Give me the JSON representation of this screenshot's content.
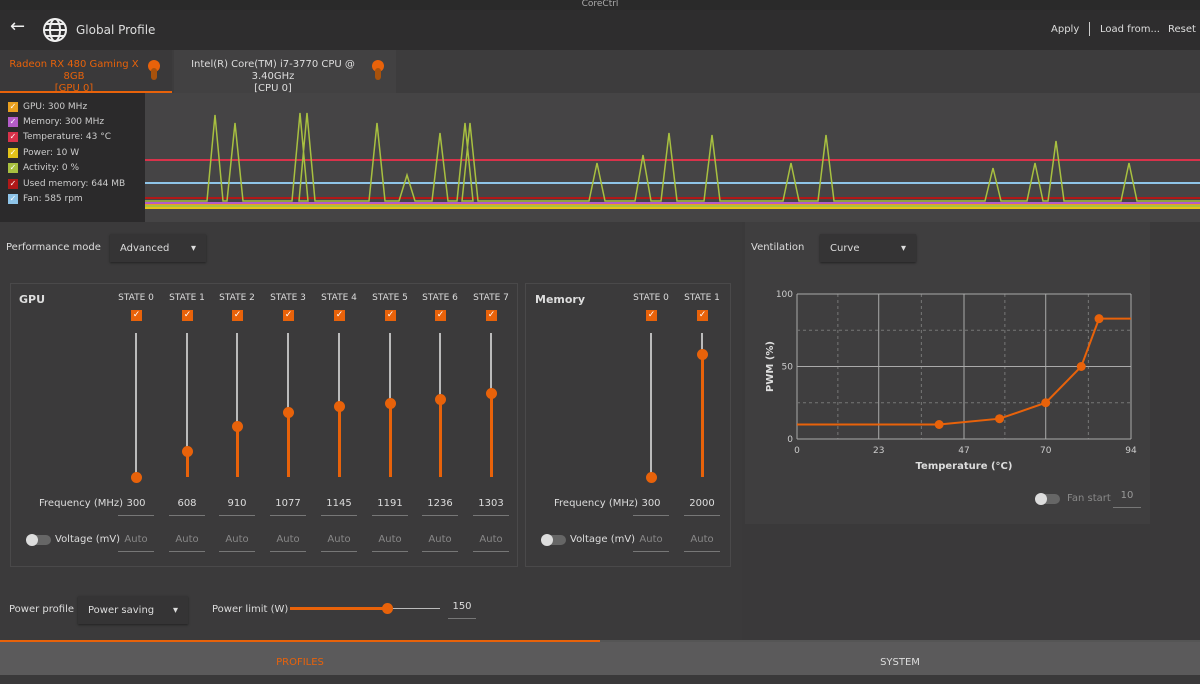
{
  "window": {
    "title": "CoreCtrl"
  },
  "header": {
    "title": "Global Profile",
    "apply": "Apply",
    "load_from": "Load from...",
    "reset": "Reset"
  },
  "tabs": [
    {
      "label": "Radeon RX 480 Gaming X 8GB",
      "sub": "[GPU 0]",
      "active": true
    },
    {
      "label": "Intel(R) Core(TM) i7-3770 CPU @ 3.40GHz",
      "sub": "[CPU 0]",
      "active": false
    }
  ],
  "sensors": [
    {
      "label": "GPU: 300 MHz",
      "color": "#e9a020"
    },
    {
      "label": "Memory: 300 MHz",
      "color": "#b45cc8"
    },
    {
      "label": "Temperature: 43 °C",
      "color": "#d8324a"
    },
    {
      "label": "Power: 10 W",
      "color": "#e2c21a"
    },
    {
      "label": "Activity: 0 %",
      "color": "#a8c040"
    },
    {
      "label": "Used memory: 644 MB",
      "color": "#b01818"
    },
    {
      "label": "Fan: 585 rpm",
      "color": "#8ec4e8"
    }
  ],
  "accent": "#e8620a",
  "performance": {
    "label": "Performance mode",
    "value": "Advanced"
  },
  "gpu": {
    "title": "GPU",
    "freq_label": "Frequency (MHz)",
    "volt_label": "Voltage (mV)",
    "states": [
      {
        "name": "STATE 0",
        "freq": "300",
        "volt": "Auto",
        "level": 0
      },
      {
        "name": "STATE 1",
        "freq": "608",
        "volt": "Auto",
        "level": 0.18
      },
      {
        "name": "STATE 2",
        "freq": "910",
        "volt": "Auto",
        "level": 0.35
      },
      {
        "name": "STATE 3",
        "freq": "1077",
        "volt": "Auto",
        "level": 0.45
      },
      {
        "name": "STATE 4",
        "freq": "1145",
        "volt": "Auto",
        "level": 0.49
      },
      {
        "name": "STATE 5",
        "freq": "1191",
        "volt": "Auto",
        "level": 0.51
      },
      {
        "name": "STATE 6",
        "freq": "1236",
        "volt": "Auto",
        "level": 0.54
      },
      {
        "name": "STATE 7",
        "freq": "1303",
        "volt": "Auto",
        "level": 0.58
      }
    ]
  },
  "memory": {
    "title": "Memory",
    "freq_label": "Frequency (MHz)",
    "volt_label": "Voltage (mV)",
    "states": [
      {
        "name": "STATE 0",
        "freq": "300",
        "volt": "Auto",
        "level": 0
      },
      {
        "name": "STATE 1",
        "freq": "2000",
        "volt": "Auto",
        "level": 0.85
      }
    ]
  },
  "power": {
    "profile_label": "Power profile",
    "profile_value": "Power saving",
    "limit_label": "Power limit (W)",
    "limit_value": "150",
    "limit_fraction": 0.65
  },
  "ventilation": {
    "label": "Ventilation",
    "value": "Curve",
    "fan_start_label": "Fan start",
    "fan_start_value": "10"
  },
  "chart_data": {
    "type": "line",
    "xlabel": "Temperature (°C)",
    "ylabel": "PWM (%)",
    "xlim": [
      0,
      94
    ],
    "ylim": [
      0,
      100
    ],
    "xticks": [
      "0",
      "23",
      "47",
      "70",
      "94"
    ],
    "yticks": [
      "0",
      "50",
      "100"
    ],
    "grid": true,
    "points": [
      [
        40,
        10
      ],
      [
        57,
        14
      ],
      [
        70,
        25
      ],
      [
        80,
        50
      ],
      [
        85,
        83
      ]
    ]
  },
  "bottom_tabs": [
    {
      "label": "PROFILES",
      "active": true
    },
    {
      "label": "SYSTEM",
      "active": false
    }
  ]
}
